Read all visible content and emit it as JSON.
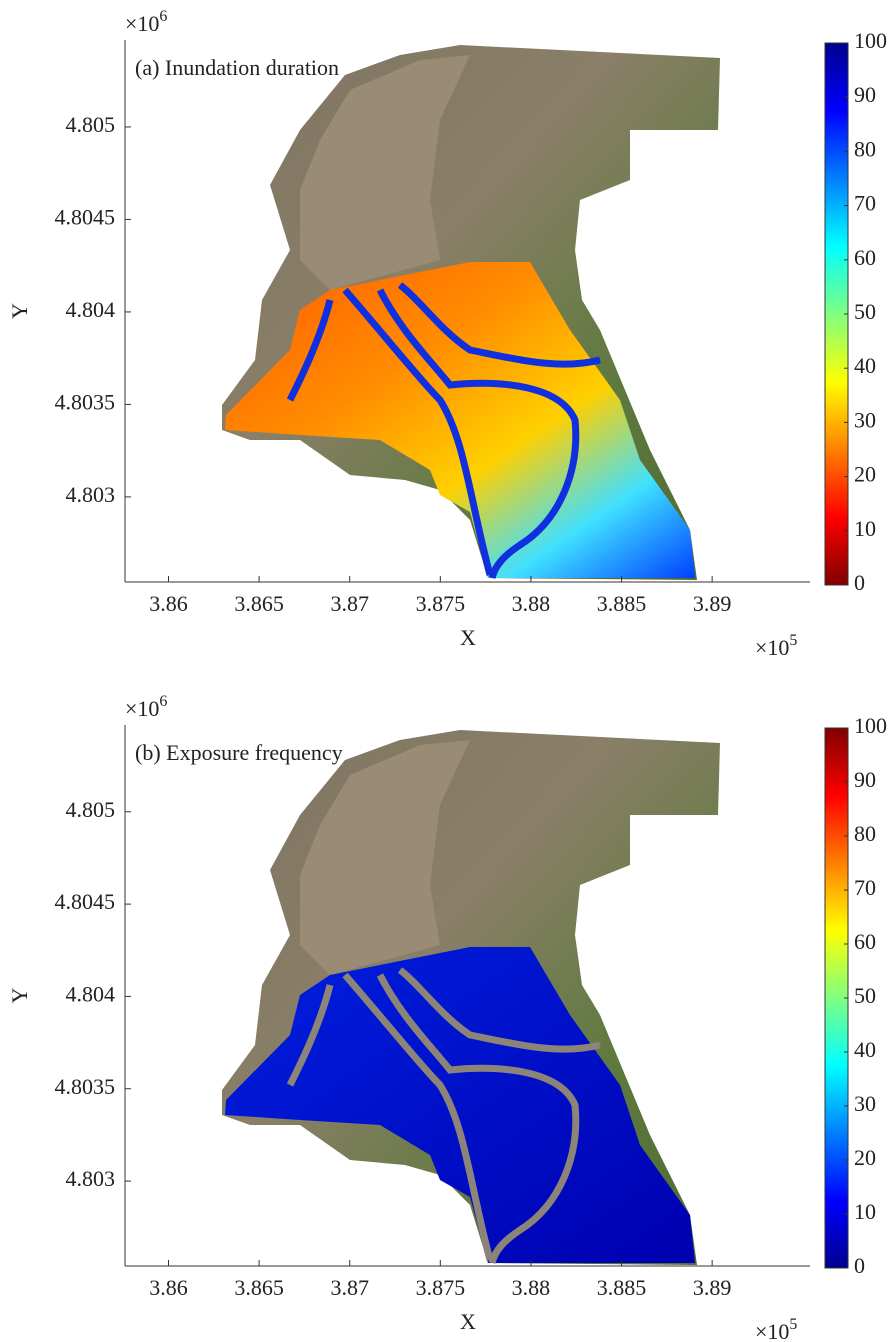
{
  "chart_data": [
    {
      "type": "map",
      "title": "(a) Inundation duration",
      "x_label": "X",
      "y_label": "Y",
      "xlim": [
        3.8576,
        3.8954
      ],
      "xticks": [
        3.86,
        3.865,
        3.87,
        3.875,
        3.88,
        3.885,
        3.89
      ],
      "ylim": [
        4.80254,
        4.80547
      ],
      "yticks": [
        4.803,
        4.8035,
        4.804,
        4.8045,
        4.805
      ],
      "x_multiplier": {
        "base": "×10",
        "exponent": "5"
      },
      "y_multiplier": {
        "base": "×10",
        "exponent": "6"
      },
      "colormap": "jet_r",
      "clim": [
        0,
        100
      ],
      "cticks": [
        0,
        10,
        20,
        30,
        40,
        50,
        60,
        70,
        80,
        90,
        100
      ]
    },
    {
      "type": "map",
      "title": "(b) Exposure frequency",
      "x_label": "X",
      "y_label": "Y",
      "xlim": [
        3.8576,
        3.8954
      ],
      "xticks": [
        3.86,
        3.865,
        3.87,
        3.875,
        3.88,
        3.885,
        3.89
      ],
      "ylim": [
        4.80254,
        4.80547
      ],
      "yticks": [
        4.803,
        4.8035,
        4.804,
        4.8045,
        4.805
      ],
      "x_multiplier": {
        "base": "×10",
        "exponent": "5"
      },
      "y_multiplier": {
        "base": "×10",
        "exponent": "6"
      },
      "colormap": "jet",
      "clim": [
        0,
        100
      ],
      "cticks": [
        0,
        10,
        20,
        30,
        40,
        50,
        60,
        70,
        80,
        90,
        100
      ]
    }
  ]
}
